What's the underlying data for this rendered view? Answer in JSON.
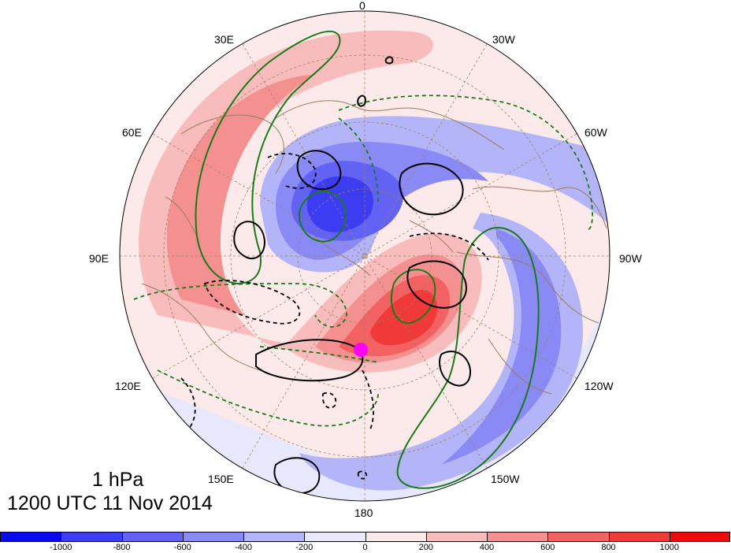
{
  "map": {
    "projection": "north-polar-stereographic",
    "level_label": "1 hPa",
    "time_label": "1200 UTC 11 Nov 2014",
    "longitude_labels": [
      "0",
      "30W",
      "60W",
      "90W",
      "120W",
      "150W",
      "180",
      "150E",
      "120E",
      "90E",
      "60E",
      "30E"
    ],
    "marker": {
      "name": "magenta-dot",
      "color": "#ff00ff"
    },
    "colors": {
      "coastline": "#9c7b5c",
      "grid": "#a08060",
      "contour_black": "#000000",
      "contour_green": "#1a7a1a"
    }
  },
  "colorbar": {
    "colors": [
      "#0a0af0",
      "#3c3cf2",
      "#6262f4",
      "#8a8af6",
      "#b4b4f8",
      "#e8e8fc",
      "#fceaea",
      "#f8bcbc",
      "#f49090",
      "#f26262",
      "#f03a3a",
      "#f00a0a"
    ],
    "tick_labels": [
      "-1000",
      "-800",
      "-600",
      "-400",
      "-200",
      "0",
      "200",
      "400",
      "600",
      "800",
      "1000"
    ]
  }
}
